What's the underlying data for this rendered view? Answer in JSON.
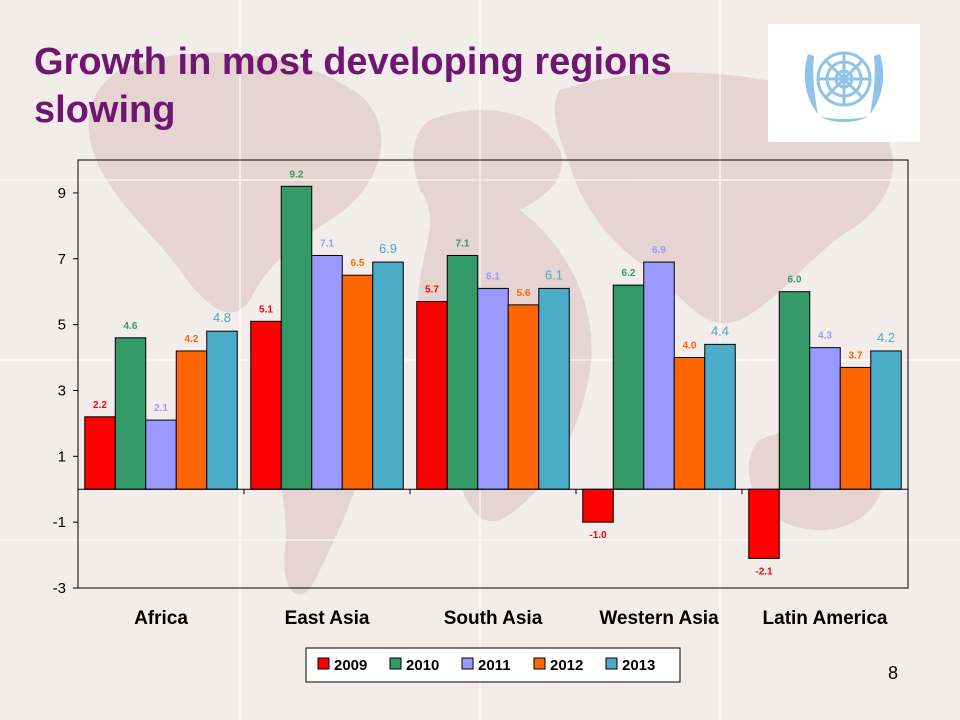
{
  "slide": {
    "title": "Growth in most developing regions slowing",
    "page_number": "8"
  },
  "colors": {
    "title": "#6e1670",
    "un_blue": "#8fc3ea",
    "series": [
      "#ff0000",
      "#339966",
      "#9999ff",
      "#ff6600",
      "#4aacc6"
    ]
  },
  "icons": {
    "logo": "united-nations-emblem-icon"
  },
  "chart_data": {
    "type": "bar",
    "categories": [
      "Africa",
      "East Asia",
      "South Asia",
      "Western Asia",
      "Latin America"
    ],
    "series": [
      {
        "name": "2009",
        "values": [
          2.2,
          5.1,
          5.7,
          -1.0,
          -2.1
        ],
        "labels": [
          "2.2",
          "5.1",
          "5.7",
          "-1.0",
          "-2.1"
        ]
      },
      {
        "name": "2010",
        "values": [
          4.6,
          9.2,
          7.1,
          6.2,
          6.0
        ],
        "labels": [
          "4.6",
          "9.2",
          "7.1",
          "6.2",
          "6.0"
        ]
      },
      {
        "name": "2011",
        "values": [
          2.1,
          7.1,
          6.1,
          6.9,
          4.3
        ],
        "labels": [
          "2.1",
          "7.1",
          "6.1",
          "6.9",
          "4.3"
        ]
      },
      {
        "name": "2012",
        "values": [
          4.2,
          6.5,
          5.6,
          4.0,
          3.7
        ],
        "labels": [
          "4.2",
          "6.5",
          "5.6",
          "4.0",
          "3.7"
        ]
      },
      {
        "name": "2013",
        "values": [
          4.8,
          6.9,
          6.1,
          4.4,
          4.2
        ],
        "labels": [
          "4.8",
          "6.9",
          "6.1",
          "4.4",
          "4.2"
        ]
      }
    ],
    "yticks": [
      "9",
      "7",
      "5",
      "3",
      "1",
      "-1",
      "-3"
    ],
    "ylim": [
      -3,
      10
    ],
    "xlabel": "",
    "ylabel": "",
    "grid": false,
    "legend_position": "bottom"
  }
}
